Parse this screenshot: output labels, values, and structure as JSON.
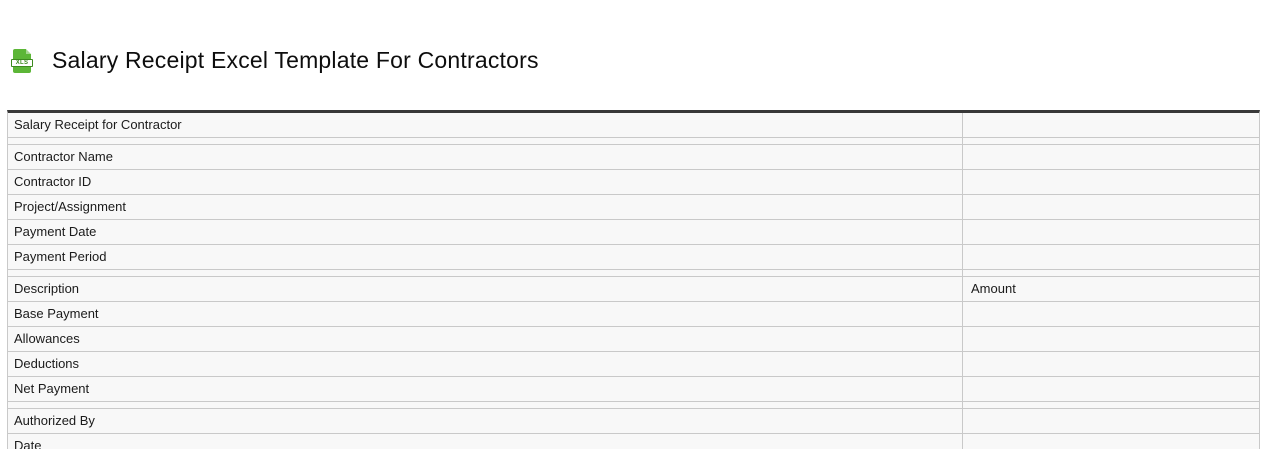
{
  "header": {
    "title": "Salary Receipt Excel Template For Contractors",
    "icon": {
      "name": "xls-file-icon",
      "label": "XLS",
      "color": "#5cb637"
    }
  },
  "table": {
    "rows": [
      {
        "type": "row",
        "label": "Salary Receipt for Contractor",
        "value": ""
      },
      {
        "type": "spacer",
        "label": "",
        "value": ""
      },
      {
        "type": "row",
        "label": "Contractor Name",
        "value": ""
      },
      {
        "type": "row",
        "label": "Contractor ID",
        "value": ""
      },
      {
        "type": "row",
        "label": "Project/Assignment",
        "value": ""
      },
      {
        "type": "row",
        "label": "Payment Date",
        "value": ""
      },
      {
        "type": "row",
        "label": "Payment Period",
        "value": ""
      },
      {
        "type": "spacer",
        "label": "",
        "value": ""
      },
      {
        "type": "row",
        "label": "Description",
        "value": "Amount"
      },
      {
        "type": "row",
        "label": "Base Payment",
        "value": ""
      },
      {
        "type": "row",
        "label": "Allowances",
        "value": ""
      },
      {
        "type": "row",
        "label": "Deductions",
        "value": ""
      },
      {
        "type": "row",
        "label": "Net Payment",
        "value": ""
      },
      {
        "type": "spacer",
        "label": "",
        "value": ""
      },
      {
        "type": "row",
        "label": "Authorized By",
        "value": ""
      },
      {
        "type": "row",
        "label": "Date",
        "value": ""
      }
    ]
  },
  "colors": {
    "icon_green": "#5cb637",
    "icon_green_dark": "#3d8a1f",
    "table_top_border": "#383838",
    "grid_line": "#c9c9c9",
    "cell_background": "#f8f8f8"
  }
}
